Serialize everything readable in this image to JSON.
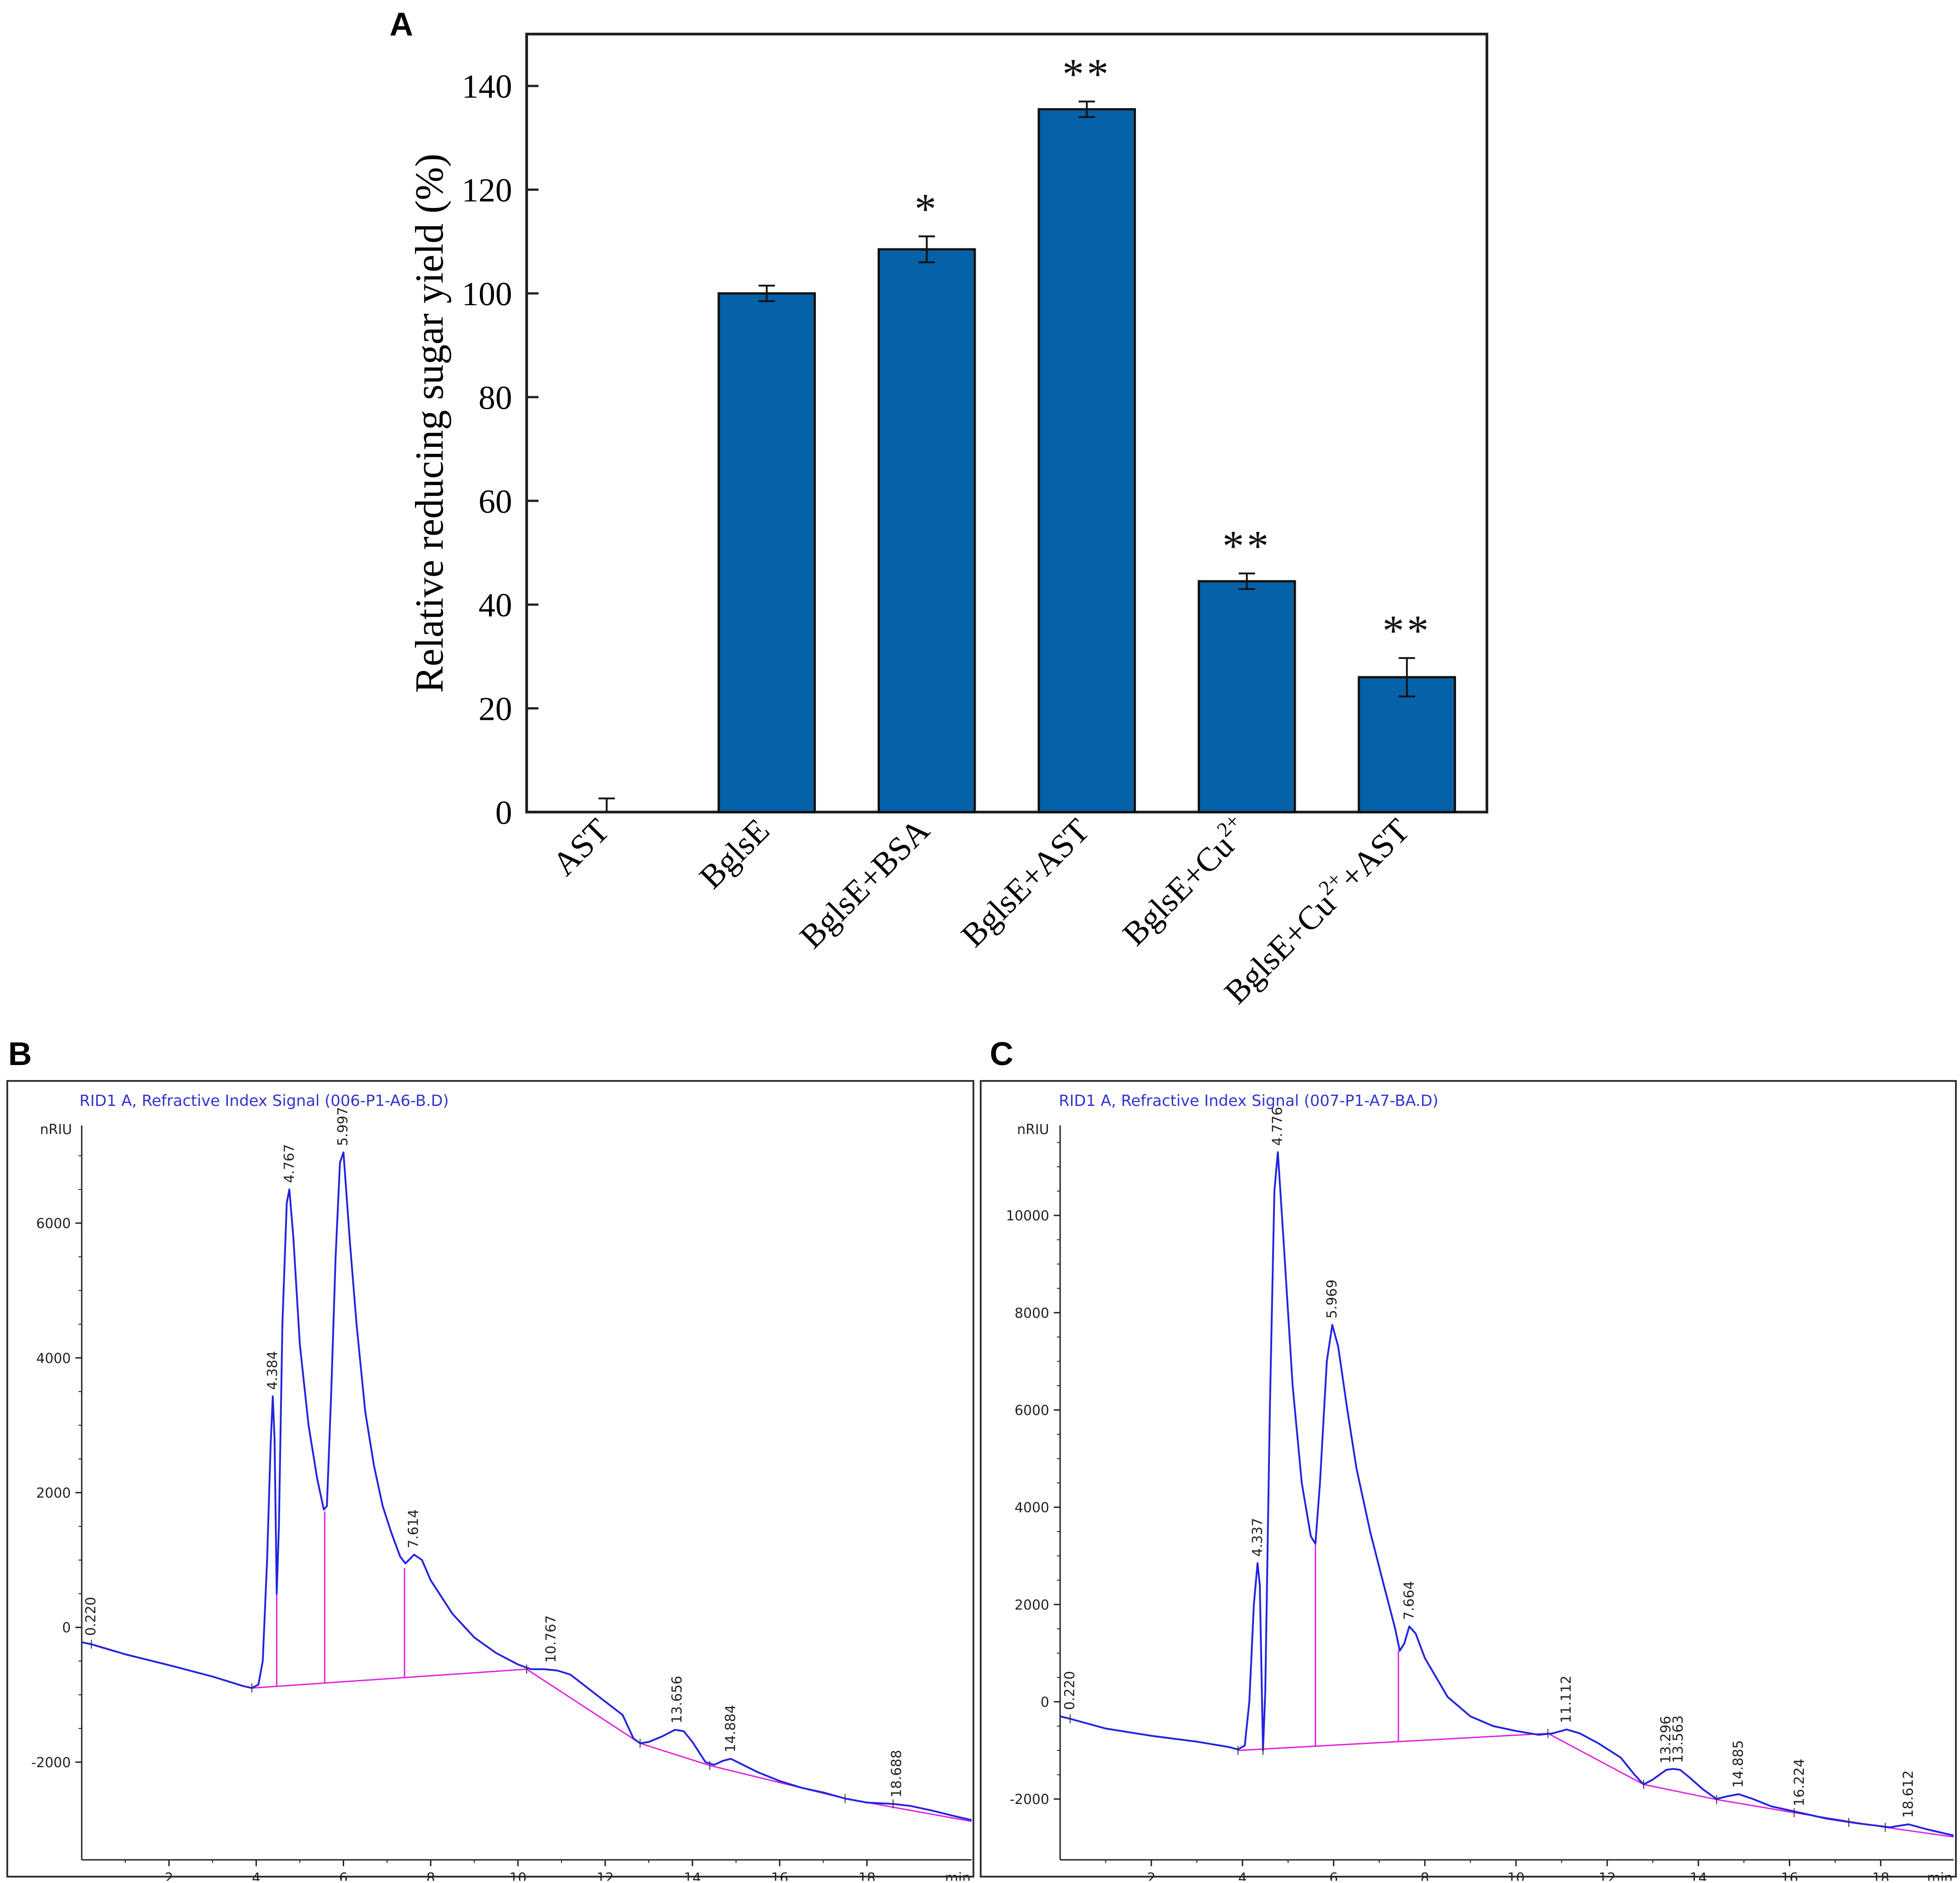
{
  "panels": {
    "a_letter": "A",
    "b_letter": "B",
    "c_letter": "C"
  },
  "colors": {
    "bar_fill": "#0561a8",
    "trace": "#2323e0",
    "baseline": "#e020e0",
    "axis": "#222222",
    "header_text": "#3333cc"
  },
  "chart_data": [
    {
      "id": "A",
      "type": "bar",
      "title": "",
      "xlabel": "",
      "ylabel": "Relative reducing sugar yield (%)",
      "ylim": [
        0,
        150
      ],
      "yticks": [
        0,
        20,
        40,
        60,
        80,
        100,
        120,
        140
      ],
      "ytick_labels": [
        "0",
        "20",
        "40",
        "60",
        "80",
        "100",
        "120",
        "140"
      ],
      "categories": [
        "AST",
        "BglsE",
        "BglsE+BSA",
        "BglsE+AST",
        "BglsE+Cu2+",
        "BglsE+Cu2++AST"
      ],
      "category_labels": [
        {
          "base": "AST",
          "sup": "",
          "tail": ""
        },
        {
          "base": "BglsE",
          "sup": "",
          "tail": ""
        },
        {
          "base": "BglsE+BSA",
          "sup": "",
          "tail": ""
        },
        {
          "base": "BglsE+AST",
          "sup": "",
          "tail": ""
        },
        {
          "base": "BglsE+Cu",
          "sup": "2+",
          "tail": ""
        },
        {
          "base": "BglsE+Cu",
          "sup": "2+",
          "tail": "+AST"
        }
      ],
      "values": [
        0,
        100,
        108.5,
        135.5,
        44.5,
        26
      ],
      "errors": [
        0,
        1.5,
        2.5,
        1.5,
        1.5,
        3.7
      ],
      "significance": [
        "",
        "",
        "*",
        "**",
        "**",
        "**"
      ]
    },
    {
      "id": "B",
      "type": "line",
      "header": "RID1 A, Refractive Index Signal (006-P1-A6-B.D)",
      "ylabel": "nRIU",
      "xlabel": "min",
      "xlim": [
        0,
        20.4
      ],
      "ylim": [
        -3450,
        7450
      ],
      "xticks": [
        2,
        4,
        6,
        8,
        10,
        12,
        14,
        16,
        18
      ],
      "xtick_labels": [
        "2",
        "4",
        "6",
        "8",
        "10",
        "12",
        "14",
        "16",
        "18"
      ],
      "yticks": [
        -2000,
        0,
        2000,
        4000,
        6000
      ],
      "ytick_labels": [
        "-2000",
        "0",
        "2000",
        "4000",
        "6000"
      ],
      "trace": [
        [
          0.0,
          -220
        ],
        [
          0.22,
          -250
        ],
        [
          1.0,
          -400
        ],
        [
          2.0,
          -560
        ],
        [
          3.0,
          -730
        ],
        [
          3.7,
          -870
        ],
        [
          3.9,
          -900
        ],
        [
          4.05,
          -850
        ],
        [
          4.15,
          -500
        ],
        [
          4.25,
          1000
        ],
        [
          4.33,
          2700
        ],
        [
          4.38,
          3430
        ],
        [
          4.42,
          2800
        ],
        [
          4.47,
          500
        ],
        [
          4.52,
          1500
        ],
        [
          4.6,
          4500
        ],
        [
          4.7,
          6300
        ],
        [
          4.76,
          6500
        ],
        [
          4.85,
          5800
        ],
        [
          5.0,
          4200
        ],
        [
          5.2,
          3000
        ],
        [
          5.4,
          2200
        ],
        [
          5.55,
          1750
        ],
        [
          5.62,
          1800
        ],
        [
          5.72,
          3500
        ],
        [
          5.82,
          5500
        ],
        [
          5.92,
          6900
        ],
        [
          6.0,
          7050
        ],
        [
          6.15,
          5700
        ],
        [
          6.3,
          4500
        ],
        [
          6.5,
          3200
        ],
        [
          6.7,
          2400
        ],
        [
          6.9,
          1800
        ],
        [
          7.1,
          1400
        ],
        [
          7.3,
          1050
        ],
        [
          7.42,
          950
        ],
        [
          7.5,
          1000
        ],
        [
          7.62,
          1080
        ],
        [
          7.8,
          1000
        ],
        [
          8.0,
          700
        ],
        [
          8.5,
          200
        ],
        [
          9.0,
          -150
        ],
        [
          9.5,
          -380
        ],
        [
          10.0,
          -550
        ],
        [
          10.3,
          -620
        ],
        [
          10.6,
          -620
        ],
        [
          10.9,
          -640
        ],
        [
          11.2,
          -700
        ],
        [
          11.6,
          -900
        ],
        [
          12.0,
          -1100
        ],
        [
          12.4,
          -1300
        ],
        [
          12.65,
          -1650
        ],
        [
          12.8,
          -1720
        ],
        [
          13.0,
          -1700
        ],
        [
          13.3,
          -1620
        ],
        [
          13.6,
          -1520
        ],
        [
          13.8,
          -1540
        ],
        [
          14.0,
          -1700
        ],
        [
          14.3,
          -2000
        ],
        [
          14.5,
          -2040
        ],
        [
          14.7,
          -1980
        ],
        [
          14.88,
          -1950
        ],
        [
          15.1,
          -2020
        ],
        [
          15.5,
          -2150
        ],
        [
          16.0,
          -2280
        ],
        [
          16.5,
          -2380
        ],
        [
          17.0,
          -2450
        ],
        [
          17.5,
          -2540
        ],
        [
          18.0,
          -2600
        ],
        [
          18.6,
          -2620
        ],
        [
          19.0,
          -2650
        ],
        [
          19.5,
          -2720
        ],
        [
          20.0,
          -2800
        ],
        [
          20.4,
          -2860
        ]
      ],
      "baseline": [
        [
          3.9,
          -900
        ],
        [
          10.2,
          -620
        ],
        [
          12.8,
          -1720
        ],
        [
          14.4,
          -2050
        ],
        [
          17.5,
          -2540
        ],
        [
          20.4,
          -2880
        ]
      ],
      "drops": [
        [
          4.47,
          500
        ],
        [
          5.57,
          1720
        ],
        [
          7.4,
          880
        ]
      ],
      "ticks": [
        [
          0.22,
          -250
        ],
        [
          3.9,
          -900
        ],
        [
          10.2,
          -620
        ],
        [
          12.8,
          -1720
        ],
        [
          14.4,
          -2050
        ],
        [
          17.5,
          -2540
        ],
        [
          18.6,
          -2620
        ]
      ],
      "peak_labels": [
        {
          "t": 0.22,
          "y": -220,
          "label": "0.220"
        },
        {
          "t": 4.384,
          "y": 3430,
          "label": "4.384"
        },
        {
          "t": 4.767,
          "y": 6500,
          "label": "4.767"
        },
        {
          "t": 5.997,
          "y": 7050,
          "label": "5.997"
        },
        {
          "t": 7.614,
          "y": 1080,
          "label": "7.614"
        },
        {
          "t": 10.767,
          "y": -620,
          "label": "10.767"
        },
        {
          "t": 13.656,
          "y": -1520,
          "label": "13.656"
        },
        {
          "t": 14.884,
          "y": -1950,
          "label": "14.884"
        },
        {
          "t": 18.688,
          "y": -2620,
          "label": "18.688"
        }
      ]
    },
    {
      "id": "C",
      "type": "line",
      "header": "RID1 A, Refractive Index Signal (007-P1-A7-BA.D)",
      "ylabel": "nRIU",
      "xlabel": "min",
      "xlim": [
        0,
        19.6
      ],
      "ylim": [
        -3250,
        11850
      ],
      "xticks": [
        2,
        4,
        6,
        8,
        10,
        12,
        14,
        16,
        18
      ],
      "xtick_labels": [
        "2",
        "4",
        "6",
        "8",
        "10",
        "12",
        "14",
        "16",
        "18"
      ],
      "yticks": [
        -2000,
        0,
        2000,
        4000,
        6000,
        8000,
        10000
      ],
      "ytick_labels": [
        "-2000",
        "0",
        "2000",
        "4000",
        "6000",
        "8000",
        "10000"
      ],
      "trace": [
        [
          0.0,
          -300
        ],
        [
          0.22,
          -350
        ],
        [
          1.0,
          -550
        ],
        [
          2.0,
          -700
        ],
        [
          3.0,
          -820
        ],
        [
          3.7,
          -930
        ],
        [
          3.9,
          -980
        ],
        [
          4.05,
          -900
        ],
        [
          4.15,
          0
        ],
        [
          4.25,
          2000
        ],
        [
          4.33,
          2850
        ],
        [
          4.38,
          2400
        ],
        [
          4.45,
          -1000
        ],
        [
          4.5,
          200
        ],
        [
          4.6,
          6000
        ],
        [
          4.7,
          10500
        ],
        [
          4.776,
          11300
        ],
        [
          4.9,
          9500
        ],
        [
          5.1,
          6500
        ],
        [
          5.3,
          4500
        ],
        [
          5.5,
          3400
        ],
        [
          5.6,
          3250
        ],
        [
          5.7,
          4500
        ],
        [
          5.85,
          7000
        ],
        [
          5.97,
          7750
        ],
        [
          6.1,
          7300
        ],
        [
          6.3,
          6000
        ],
        [
          6.5,
          4800
        ],
        [
          6.8,
          3500
        ],
        [
          7.1,
          2400
        ],
        [
          7.35,
          1500
        ],
        [
          7.45,
          1050
        ],
        [
          7.55,
          1200
        ],
        [
          7.66,
          1550
        ],
        [
          7.8,
          1400
        ],
        [
          8.0,
          900
        ],
        [
          8.5,
          100
        ],
        [
          9.0,
          -300
        ],
        [
          9.5,
          -500
        ],
        [
          10.0,
          -600
        ],
        [
          10.5,
          -680
        ],
        [
          10.8,
          -650
        ],
        [
          11.112,
          -570
        ],
        [
          11.4,
          -650
        ],
        [
          11.8,
          -850
        ],
        [
          12.3,
          -1150
        ],
        [
          12.6,
          -1500
        ],
        [
          12.8,
          -1700
        ],
        [
          13.0,
          -1600
        ],
        [
          13.296,
          -1400
        ],
        [
          13.45,
          -1380
        ],
        [
          13.6,
          -1400
        ],
        [
          13.8,
          -1550
        ],
        [
          14.1,
          -1800
        ],
        [
          14.4,
          -2000
        ],
        [
          14.6,
          -1950
        ],
        [
          14.885,
          -1900
        ],
        [
          15.2,
          -2000
        ],
        [
          15.6,
          -2150
        ],
        [
          16.224,
          -2280
        ],
        [
          16.8,
          -2400
        ],
        [
          17.5,
          -2500
        ],
        [
          18.2,
          -2580
        ],
        [
          18.612,
          -2520
        ],
        [
          19.0,
          -2620
        ],
        [
          19.6,
          -2750
        ]
      ],
      "baseline": [
        [
          3.9,
          -1000
        ],
        [
          10.7,
          -650
        ],
        [
          12.8,
          -1700
        ],
        [
          14.4,
          -2010
        ],
        [
          16.1,
          -2280
        ],
        [
          18.1,
          -2580
        ],
        [
          19.6,
          -2780
        ]
      ],
      "drops": [
        [
          4.45,
          -1000
        ],
        [
          5.6,
          3250
        ],
        [
          7.42,
          1050
        ]
      ],
      "ticks": [
        [
          0.22,
          -350
        ],
        [
          3.9,
          -1000
        ],
        [
          4.45,
          -1000
        ],
        [
          10.7,
          -650
        ],
        [
          12.8,
          -1700
        ],
        [
          14.4,
          -2010
        ],
        [
          16.1,
          -2280
        ],
        [
          17.3,
          -2480
        ],
        [
          18.1,
          -2580
        ]
      ],
      "peak_labels": [
        {
          "t": 0.22,
          "y": -300,
          "label": "0.220"
        },
        {
          "t": 4.337,
          "y": 2850,
          "label": "4.337"
        },
        {
          "t": 4.776,
          "y": 11300,
          "label": "4.776"
        },
        {
          "t": 5.969,
          "y": 7750,
          "label": "5.969"
        },
        {
          "t": 7.664,
          "y": 1550,
          "label": "7.664"
        },
        {
          "t": 11.112,
          "y": -570,
          "label": "11.112"
        },
        {
          "t": 13.296,
          "y": -1400,
          "label": "13.296"
        },
        {
          "t": 13.563,
          "y": -1390,
          "label": "13.563"
        },
        {
          "t": 14.885,
          "y": -1900,
          "label": "14.885"
        },
        {
          "t": 16.224,
          "y": -2280,
          "label": "16.224"
        },
        {
          "t": 18.612,
          "y": -2520,
          "label": "18.612"
        }
      ]
    }
  ]
}
